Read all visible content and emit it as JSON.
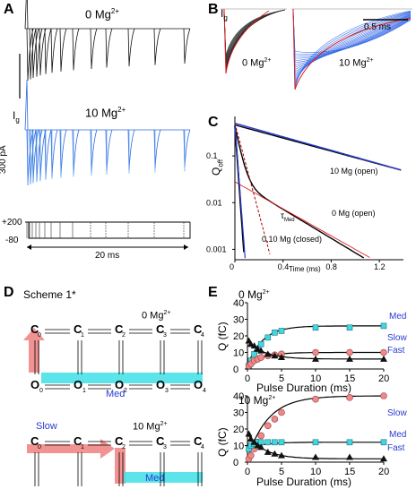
{
  "panels": {
    "A": {
      "letter": "A",
      "top_label": "0 Mg",
      "mid_label": "10 Mg",
      "ig": "I",
      "ig_sub": "g",
      "scale_y": "300 pA",
      "v_high": "+200",
      "v_low": "-80",
      "time_bar": "20 ms",
      "sup": "2+"
    },
    "B": {
      "letter": "B",
      "ig": "I",
      "ig_sub": "g",
      "scale": "0.5 ms",
      "left_label": "0 Mg",
      "right_label": "10 Mg",
      "sup": "2+"
    },
    "C": {
      "letter": "C",
      "ylabel": "Q",
      "ylabel_sub": "off",
      "xlabel": "Time (ms)",
      "series_labels": [
        "10 Mg (open)",
        "0 Mg (open)",
        "0,10 Mg (closed)"
      ],
      "tau": "τ",
      "tau_sub": "Med"
    },
    "D": {
      "letter": "D",
      "scheme": "Scheme 1*",
      "top_cond": "0 Mg",
      "bottom_cond": "10 Mg",
      "med": "Med",
      "slow": "Slow",
      "sup": "2+"
    },
    "E": {
      "letter": "E",
      "top_cond": "0 Mg",
      "bottom_cond": "10 Mg",
      "ylabel": "Q (fC)",
      "xlabel": "Pulse Duration (ms)",
      "legend_top": [
        "Med",
        "Slow",
        "Fast"
      ],
      "legend_bottom": [
        "Slow",
        "Med",
        "Fast"
      ],
      "sup": "2+"
    }
  },
  "chart_data": [
    {
      "type": "scatter",
      "title": "0 Mg2+",
      "xlabel": "Pulse Duration (ms)",
      "ylabel": "Q (fC)",
      "xlim": [
        0,
        20
      ],
      "ylim": [
        0,
        40
      ],
      "x": [
        0.2,
        0.5,
        1,
        1.5,
        2,
        3,
        4,
        5,
        10,
        15,
        20
      ],
      "series": [
        {
          "name": "Med",
          "values": [
            2,
            5,
            9,
            12,
            15,
            19,
            22,
            23,
            25,
            25,
            26
          ]
        },
        {
          "name": "Slow",
          "values": [
            2,
            3,
            5,
            6,
            7,
            8,
            8.5,
            9,
            10,
            10,
            10
          ]
        },
        {
          "name": "Fast",
          "values": [
            17,
            15,
            14,
            12,
            11,
            9,
            8,
            7,
            6,
            6,
            6
          ]
        }
      ]
    },
    {
      "type": "scatter",
      "title": "10 Mg2+",
      "xlabel": "Pulse Duration (ms)",
      "ylabel": "Q (fC)",
      "xlim": [
        0,
        20
      ],
      "ylim": [
        0,
        40
      ],
      "x": [
        0.2,
        0.5,
        1,
        1.5,
        2,
        3,
        4,
        5,
        10,
        15,
        20
      ],
      "series": [
        {
          "name": "Slow",
          "values": [
            2,
            4,
            8,
            12,
            16,
            22,
            26,
            30,
            38,
            39,
            40
          ]
        },
        {
          "name": "Med",
          "values": [
            8,
            10,
            11,
            12,
            12,
            12,
            12,
            12,
            12,
            12,
            12
          ]
        },
        {
          "name": "Fast",
          "values": [
            17,
            14,
            12,
            10,
            9,
            6,
            5,
            4,
            3,
            3,
            2
          ]
        }
      ]
    },
    {
      "type": "line",
      "title": "",
      "xlabel": "Time (ms)",
      "ylabel": "Qoff",
      "xlim": [
        0,
        1.4
      ],
      "yscale": "log",
      "xticks": [
        0,
        0.4,
        0.8,
        1.2
      ],
      "yticks": [
        "0.001",
        "0.01",
        "0.1"
      ]
    }
  ]
}
